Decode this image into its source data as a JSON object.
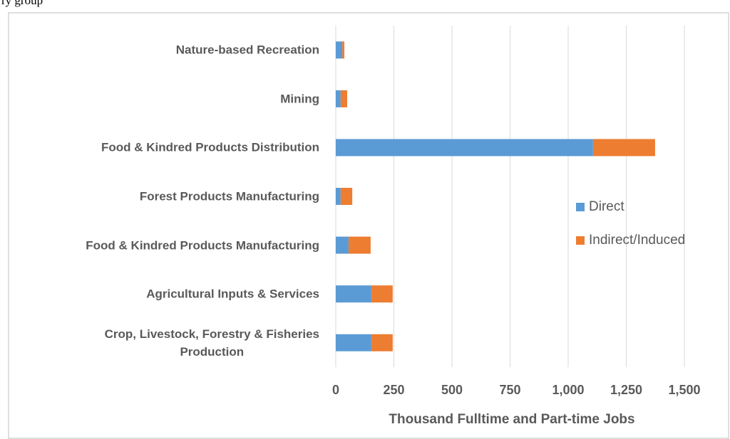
{
  "caption": "ry group",
  "chart_data": {
    "type": "stacked-barh",
    "xlabel": "Thousand  Fulltime and Part-time Jobs",
    "categories": [
      "Nature-based Recreation",
      "Mining",
      "Food & Kindred Products Distribution",
      "Forest Products Manufacturing",
      "Food & Kindred Products Manufacturing",
      "Agricultural Inputs & Services",
      "Crop, Livestock, Forestry & Fisheries\nProduction"
    ],
    "series": [
      {
        "name": "Direct",
        "color": "#5b9bd5",
        "values": [
          28,
          21,
          1107,
          21,
          55,
          153,
          153
        ]
      },
      {
        "name": "Indirect/Induced",
        "color": "#ed7d31",
        "values": [
          9,
          28,
          267,
          50,
          95,
          92,
          92
        ]
      }
    ],
    "xlim": [
      0,
      1500
    ],
    "xticks": [
      0,
      250,
      500,
      750,
      {
        "value": 1000,
        "label": "1,000"
      },
      {
        "value": 1250,
        "label": "1,250"
      },
      {
        "value": 1500,
        "label": "1,500"
      }
    ],
    "grid": true,
    "legend": "right"
  }
}
